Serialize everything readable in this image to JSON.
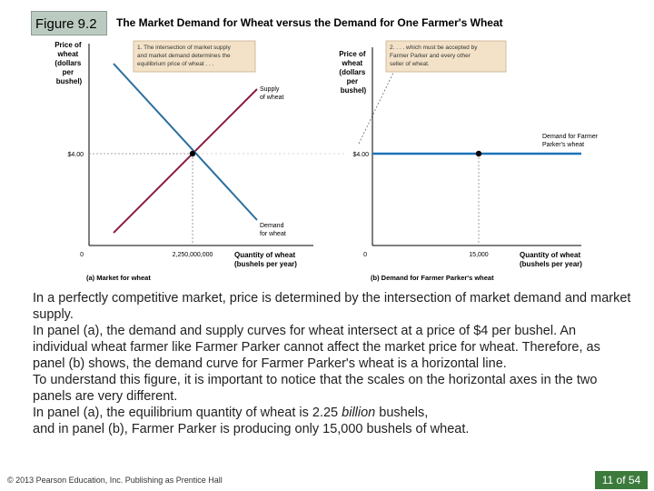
{
  "header": {
    "figure_label": "Figure 9.2",
    "title": "The Market Demand for Wheat versus the Demand for One Farmer's Wheat"
  },
  "panel_a": {
    "y_axis_label": [
      "Price of",
      "wheat",
      "(dollars",
      "per",
      "bushel)"
    ],
    "price_tick": "$4.00",
    "origin": "0",
    "quantity_tick": "2,250,000,000",
    "x_axis_label": [
      "Quantity of wheat",
      "(bushels per year)"
    ],
    "caption": "(a) Market for wheat",
    "supply_label": [
      "Supply",
      "of wheat"
    ],
    "demand_label": [
      "Demand",
      "for wheat"
    ],
    "note": [
      "1. The intersection of market supply",
      "and market demand determines the",
      "equilibrium price of wheat . . ."
    ],
    "colors": {
      "supply": "#8b1d3f",
      "demand": "#2a6e9e"
    }
  },
  "panel_b": {
    "y_axis_label": [
      "Price of",
      "wheat",
      "(dollars",
      "per",
      "bushel)"
    ],
    "price_tick": "$4.00",
    "origin": "0",
    "quantity_tick": "15,000",
    "x_axis_label": [
      "Quantity of wheat",
      "(bushels per year)"
    ],
    "caption": "(b) Demand for Farmer Parker's wheat",
    "demand_label": [
      "Demand for Farmer",
      "Parker's wheat"
    ],
    "note": [
      "2. . . . which must be accepted by",
      "Farmer Parker and every other",
      "seller of wheat."
    ],
    "colors": {
      "demand": "#1a73b8"
    }
  },
  "body": {
    "p1": "In a perfectly competitive market, price is determined by the intersection of market demand and market supply.",
    "p2": "In panel (a), the demand and supply curves for wheat intersect at a price of $4 per bushel. An individual wheat farmer like Farmer Parker cannot affect the market price for wheat. Therefore, as panel (b) shows, the demand curve for Farmer Parker's wheat is a horizontal line.",
    "p3": "To understand this figure, it is important to notice that the scales on the horizontal axes in the two panels are very different.",
    "p4_before": "In panel (a), the equilibrium quantity of wheat is 2.25 ",
    "p4_emph": "billion",
    "p4_after": " bushels,",
    "p5": "and in panel (b), Farmer Parker is producing only 15,000 bushels of wheat."
  },
  "footer": {
    "copyright": "© 2013 Pearson Education, Inc. Publishing as Prentice Hall",
    "page": "11 of 54"
  }
}
